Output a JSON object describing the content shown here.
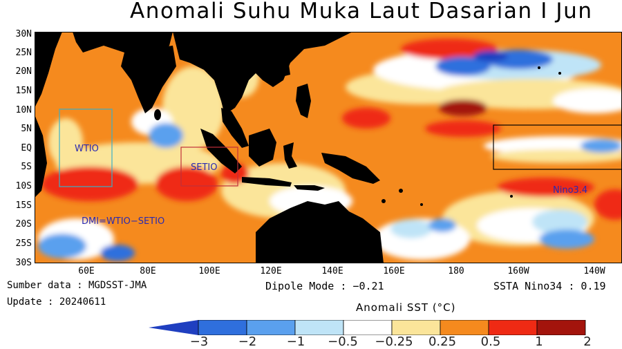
{
  "title": "Anomali Suhu Muka Laut Dasarian I Jun",
  "y_ticks": [
    "30N",
    "25N",
    "20N",
    "15N",
    "10N",
    "5N",
    "EQ",
    "5S",
    "10S",
    "15S",
    "20S",
    "25S",
    "30S"
  ],
  "x_ticks": [
    "60E",
    "80E",
    "100E",
    "120E",
    "140E",
    "160E",
    "180",
    "160W",
    "140W"
  ],
  "regions": {
    "wtio": "WTIO",
    "setio": "SETIO",
    "nino": "Nino3.4",
    "dmi": "DMI=WTIO−SETIO"
  },
  "source": "Sumber data : MGDSST-JMA",
  "update": "Update : 20240611",
  "dipole": "Dipole Mode : −0.21",
  "nino34": "SSTA Nino34 : 0.19",
  "colorbar": {
    "title": "Anomali SST (°C)",
    "labels": [
      "−3",
      "−2",
      "−1",
      "−0.5",
      "−0.25",
      "0.25",
      "0.5",
      "1",
      "2"
    ],
    "colors": [
      "#1f3fc0",
      "#2f6fdd",
      "#5aa0ee",
      "#bfe4f7",
      "#ffffff",
      "#fbe59a",
      "#f58a1e",
      "#ef2a14",
      "#a3140c"
    ]
  }
}
